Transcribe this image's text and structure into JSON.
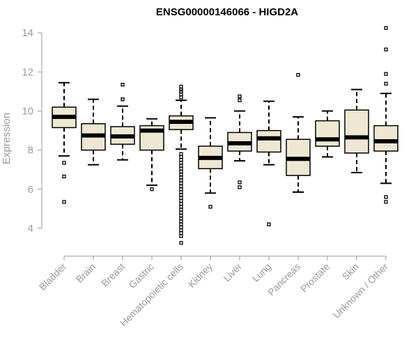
{
  "chart_data": {
    "type": "boxplot",
    "title": "ENSG00000146066 - HIGD2A",
    "xlabel": "",
    "ylabel": "Expression",
    "ylim": [
      3.0,
      14.4
    ],
    "yticks": [
      4,
      6,
      8,
      10,
      12,
      14
    ],
    "box_color": "#eee8d2",
    "categories": [
      "Bladder",
      "Brain",
      "Breast",
      "Gastric",
      "Hematopoietic cells",
      "Kidney",
      "Liver",
      "Lung",
      "Pancreas",
      "Prostate",
      "Skin",
      "Unknown / Other"
    ],
    "boxes": [
      {
        "name": "Bladder",
        "q1": 9.15,
        "median": 9.7,
        "q3": 10.2,
        "whisker_low": 7.7,
        "whisker_high": 11.45,
        "outliers": [
          7.35,
          6.65,
          5.35
        ]
      },
      {
        "name": "Brain",
        "q1": 8.0,
        "median": 8.75,
        "q3": 9.35,
        "whisker_low": 7.25,
        "whisker_high": 10.6,
        "outliers": []
      },
      {
        "name": "Breast",
        "q1": 8.3,
        "median": 8.7,
        "q3": 9.2,
        "whisker_low": 7.5,
        "whisker_high": 10.25,
        "outliers": [
          10.6,
          11.35
        ]
      },
      {
        "name": "Gastric",
        "q1": 8.0,
        "median": 9.0,
        "q3": 9.25,
        "whisker_low": 6.2,
        "whisker_high": 9.6,
        "outliers": [
          6.0
        ]
      },
      {
        "name": "Hematopoietic cells",
        "q1": 9.05,
        "median": 9.45,
        "q3": 9.75,
        "whisker_low": 8.05,
        "whisker_high": 10.55,
        "outliers": [
          10.7,
          10.85,
          11.0,
          11.1,
          11.25,
          7.8,
          7.65,
          7.5,
          7.35,
          7.2,
          7.05,
          6.9,
          6.75,
          6.6,
          6.45,
          6.3,
          6.15,
          6.0,
          5.85,
          5.7,
          5.55,
          5.4,
          5.25,
          5.1,
          4.95,
          4.8,
          4.65,
          4.5,
          4.35,
          4.2,
          4.05,
          3.9,
          3.75,
          3.6,
          3.25
        ]
      },
      {
        "name": "Kidney",
        "q1": 7.05,
        "median": 7.6,
        "q3": 8.2,
        "whisker_low": 5.8,
        "whisker_high": 9.65,
        "outliers": [
          5.1
        ]
      },
      {
        "name": "Liver",
        "q1": 7.95,
        "median": 8.35,
        "q3": 8.9,
        "whisker_low": 7.45,
        "whisker_high": 10.0,
        "outliers": [
          10.55,
          10.75,
          6.35,
          6.1
        ]
      },
      {
        "name": "Lung",
        "q1": 7.9,
        "median": 8.6,
        "q3": 9.0,
        "whisker_low": 7.25,
        "whisker_high": 10.5,
        "outliers": [
          4.2
        ]
      },
      {
        "name": "Pancreas",
        "q1": 6.7,
        "median": 7.55,
        "q3": 8.55,
        "whisker_low": 5.85,
        "whisker_high": 9.7,
        "outliers": [
          11.85
        ]
      },
      {
        "name": "Prostate",
        "q1": 8.2,
        "median": 8.55,
        "q3": 9.5,
        "whisker_low": 7.65,
        "whisker_high": 10.0,
        "outliers": []
      },
      {
        "name": "Skin",
        "q1": 7.85,
        "median": 8.65,
        "q3": 10.05,
        "whisker_low": 6.85,
        "whisker_high": 11.1,
        "outliers": []
      },
      {
        "name": "Unknown / Other",
        "q1": 7.95,
        "median": 8.45,
        "q3": 9.25,
        "whisker_low": 6.3,
        "whisker_high": 10.9,
        "outliers": [
          11.4,
          11.9,
          13.15,
          14.25,
          5.6,
          5.35
        ]
      }
    ]
  }
}
